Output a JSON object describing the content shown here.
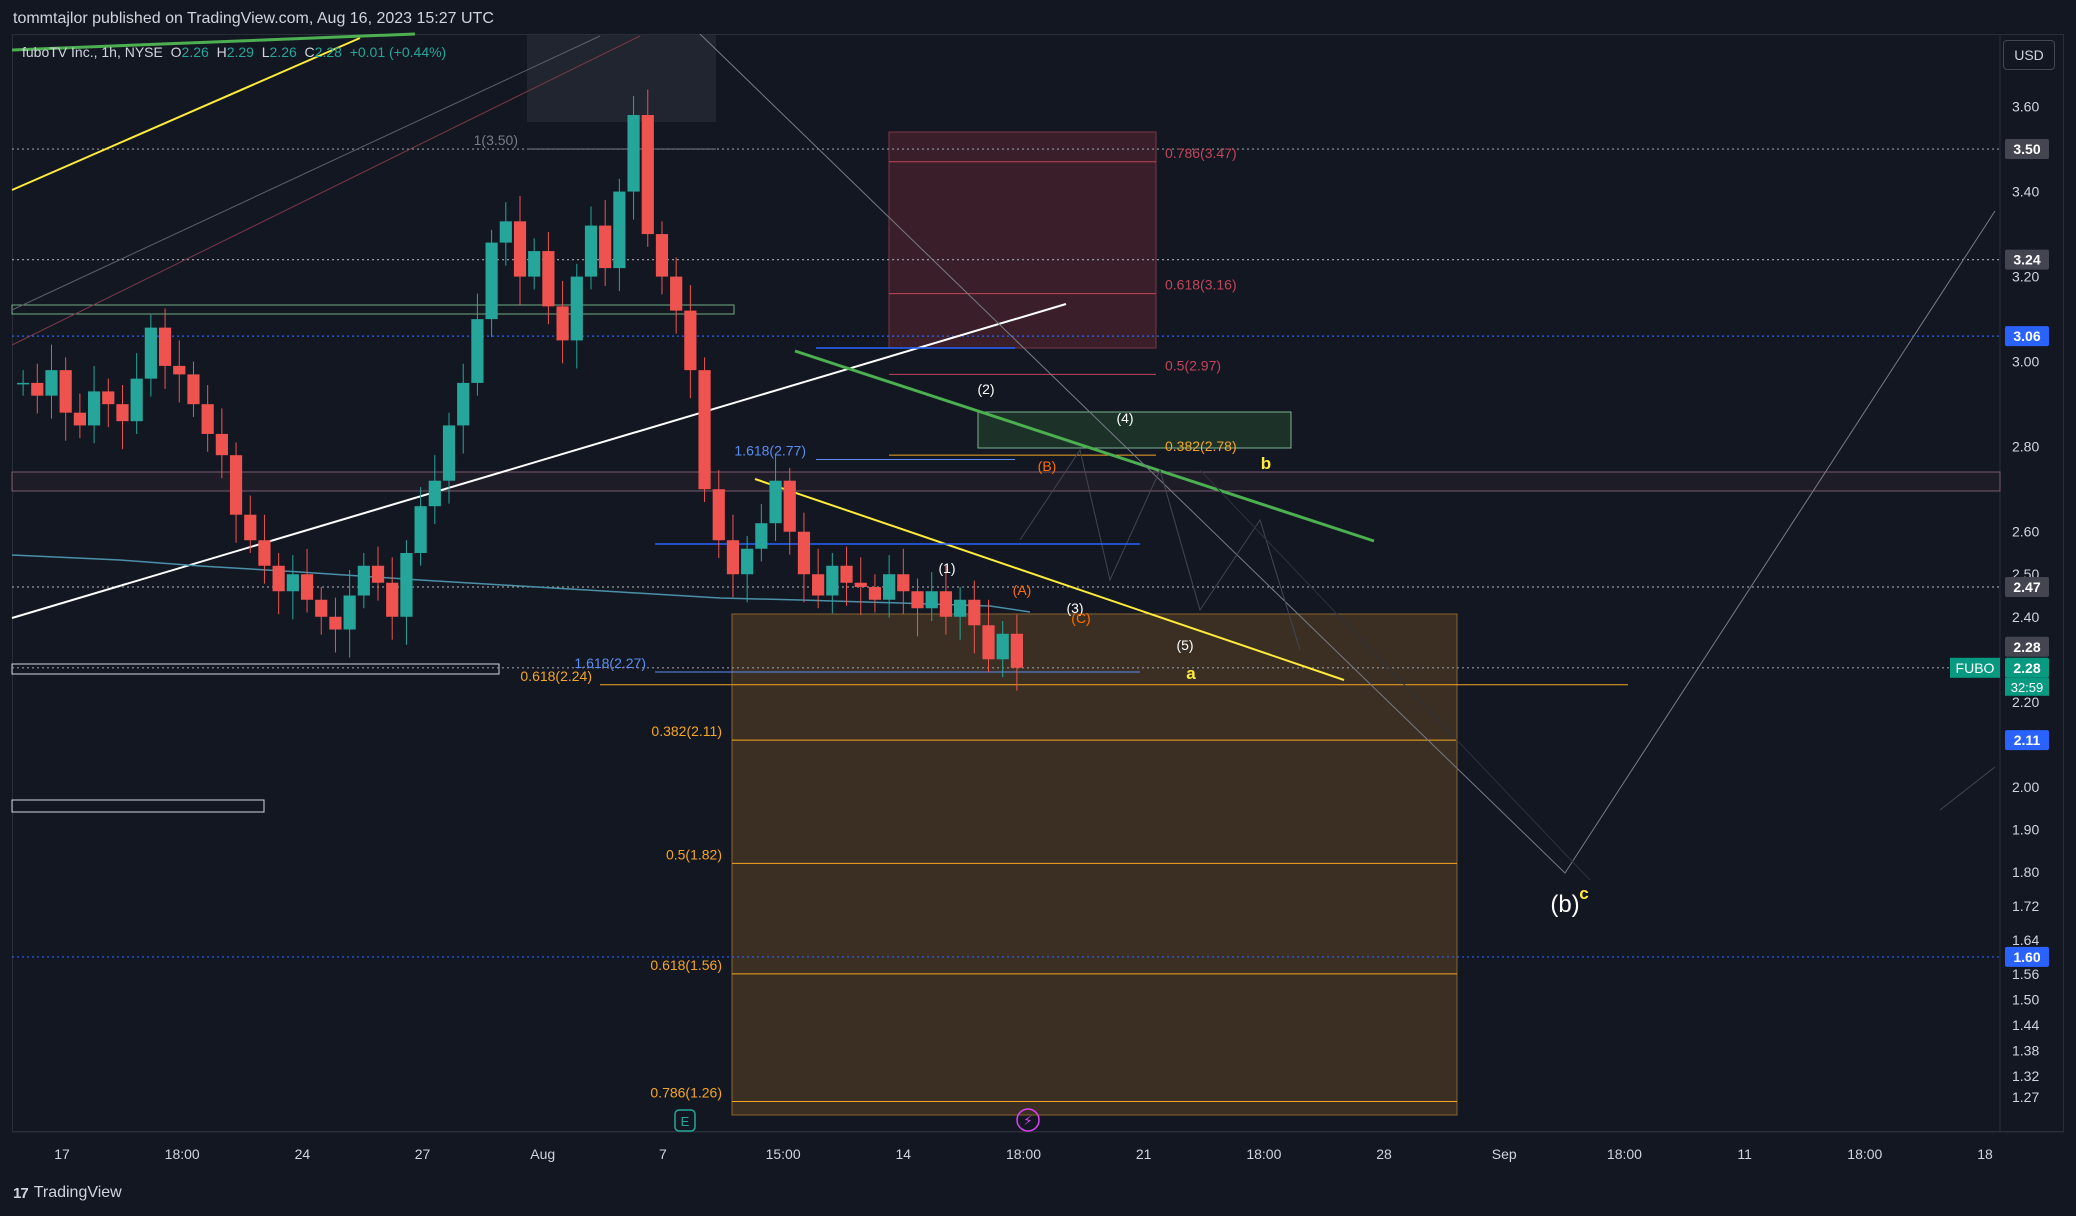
{
  "publisher_text": "tommtajlor published on TradingView.com, Aug 16, 2023 15:27 UTC",
  "footer_brand": "TradingView",
  "footer_mark": "17",
  "currency_button": "USD",
  "legend": {
    "symbol": "fuboTV Inc., 1h, NYSE",
    "open_label": "O",
    "open": "2.26",
    "high_label": "H",
    "high": "2.29",
    "low_label": "L",
    "low": "2.26",
    "close_label": "C",
    "close": "2.28",
    "change": "+0.01 (+0.44%)"
  },
  "colors": {
    "up": "#26a69a",
    "down": "#ef5350",
    "fib_orange": "#f5a623",
    "fib_red": "#c2455a",
    "blue_line": "#2962ff",
    "yellow": "#ffeb3b",
    "green_line": "#4caf50",
    "text": "#d1d4dc"
  },
  "chart_data": {
    "type": "candlestick",
    "symbol": "FUBO",
    "timeframe": "1h",
    "ylim": [
      1.24,
      3.7
    ],
    "price_ticks": [
      "3.60",
      "3.40",
      "3.20",
      "3.00",
      "2.80",
      "2.60",
      "2.50",
      "2.40",
      "2.20",
      "2.00",
      "1.90",
      "1.80",
      "1.72",
      "1.64",
      "1.56",
      "1.50",
      "1.44",
      "1.38",
      "1.32",
      "1.27"
    ],
    "time_ticks": [
      "17",
      "18:00",
      "24",
      "27",
      "Aug",
      "7",
      "15:00",
      "14",
      "18:00",
      "21",
      "18:00",
      "28",
      "Sep",
      "18:00",
      "11",
      "18:00",
      "18"
    ],
    "price_badges": [
      {
        "text": "3.50",
        "kind": "gray"
      },
      {
        "text": "3.24",
        "kind": "gray"
      },
      {
        "text": "3.06",
        "kind": "blue"
      },
      {
        "text": "2.47",
        "kind": "gray"
      },
      {
        "text": "2.28",
        "kind": "gray"
      },
      {
        "text": "2.28",
        "kind": "green"
      },
      {
        "text": "2.11",
        "kind": "blue"
      },
      {
        "text": "1.60",
        "kind": "blue"
      }
    ],
    "symbol_badge": "FUBO",
    "countdown": "32:59",
    "candles_close_path": [
      2.95,
      2.92,
      2.98,
      2.88,
      2.85,
      2.93,
      2.9,
      2.86,
      2.96,
      3.08,
      2.99,
      2.97,
      2.9,
      2.83,
      2.78,
      2.64,
      2.58,
      2.52,
      2.46,
      2.5,
      2.44,
      2.4,
      2.37,
      2.45,
      2.52,
      2.48,
      2.4,
      2.55,
      2.66,
      2.72,
      2.85,
      2.95,
      3.1,
      3.28,
      3.33,
      3.2,
      3.26,
      3.13,
      3.05,
      3.2,
      3.32,
      3.22,
      3.4,
      3.58,
      3.3,
      3.2,
      3.12,
      2.98,
      2.7,
      2.58,
      2.5,
      2.56,
      2.62,
      2.72,
      2.6,
      2.5,
      2.45,
      2.52,
      2.48,
      2.47,
      2.44,
      2.5,
      2.46,
      2.42,
      2.46,
      2.4,
      2.44,
      2.38,
      2.3,
      2.36,
      2.28
    ],
    "fib_levels": [
      {
        "label": "0.786(3.47)",
        "price": 3.47,
        "color": "red"
      },
      {
        "label": "0.618(3.16)",
        "price": 3.16,
        "color": "red"
      },
      {
        "label": "0.5(2.97)",
        "price": 2.97,
        "color": "red"
      },
      {
        "label": "0.382(2.78)",
        "price": 2.78,
        "color": "orange"
      },
      {
        "label": "1.618(2.77)",
        "price": 2.77,
        "color": "blue"
      },
      {
        "label": "1(3.50)",
        "price": 3.5,
        "color": "gray"
      },
      {
        "label": "1.618(2.27)",
        "price": 2.27,
        "color": "blue"
      },
      {
        "label": "0.618(2.24)",
        "price": 2.24,
        "color": "orange"
      },
      {
        "label": "0.382(2.11)",
        "price": 2.11,
        "color": "orange"
      },
      {
        "label": "0.5(1.82)",
        "price": 1.82,
        "color": "orange"
      },
      {
        "label": "0.618(1.56)",
        "price": 1.56,
        "color": "orange"
      },
      {
        "label": "0.786(1.26)",
        "price": 1.26,
        "color": "orange"
      }
    ],
    "horizontal_levels": [
      3.5,
      3.24,
      3.06,
      2.47,
      2.28,
      1.6
    ],
    "wave_labels": [
      {
        "text": "(1)",
        "color": "white"
      },
      {
        "text": "(2)",
        "color": "white"
      },
      {
        "text": "(3)",
        "color": "white"
      },
      {
        "text": "(4)",
        "color": "white"
      },
      {
        "text": "(5)",
        "color": "white"
      },
      {
        "text": "(A)",
        "color": "orange"
      },
      {
        "text": "(B)",
        "color": "orange"
      },
      {
        "text": "(C)",
        "color": "orange"
      },
      {
        "text": "a",
        "color": "yellow"
      },
      {
        "text": "b",
        "color": "yellow"
      },
      {
        "text": "c",
        "color": "yellow"
      },
      {
        "text": "(b)",
        "color": "white"
      }
    ],
    "event_markers": [
      "E",
      "⚡"
    ]
  }
}
